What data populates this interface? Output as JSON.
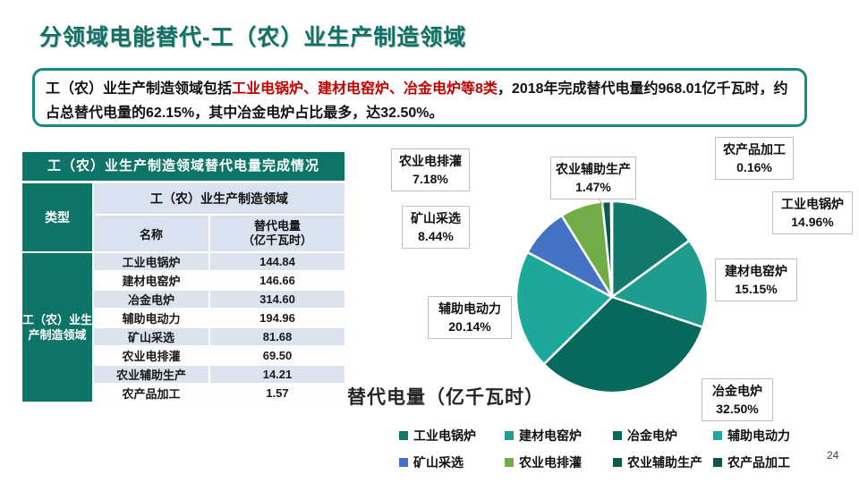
{
  "page": {
    "title": "分领域电能替代-工（农）业生产制造领域",
    "page_number": "24"
  },
  "summary": {
    "prefix": "工（农）业生产制造领域包括",
    "highlight": "工业电锅炉、建材电窑炉、冶金电炉等8类",
    "suffix": "，2018年完成替代电量约968.01亿千瓦时，约占总替代电量的62.15%，其中冶金电炉占比最多，达32.50%。",
    "highlight_color": "#C00000",
    "border_color": "#1B8A7D"
  },
  "table": {
    "title": "工（农）业生产制造领域替代电量完成情况",
    "type_header": "类型",
    "group_header": "工（农）业生产制造领域",
    "col_name": "名称",
    "col_value_line1": "替代电量",
    "col_value_line2": "（亿千瓦时）",
    "group_label_line1": "工（农）业生",
    "group_label_line2": "产制造领域",
    "rows": [
      {
        "name": "工业电锅炉",
        "value": "144.84"
      },
      {
        "name": "建材电窑炉",
        "value": "146.66"
      },
      {
        "name": "冶金电炉",
        "value": "314.60"
      },
      {
        "name": "辅助电动力",
        "value": "194.96"
      },
      {
        "name": "矿山采选",
        "value": "81.68"
      },
      {
        "name": "农业电排灌",
        "value": "69.50"
      },
      {
        "name": "农业辅助生产",
        "value": "14.21"
      },
      {
        "name": "农产品加工",
        "value": "1.57"
      }
    ]
  },
  "chart_data": {
    "type": "pie",
    "title": "替代电量（亿千瓦时）",
    "start_angle_deg": 0,
    "direction": "clockwise-from-12-oclock",
    "legend_position": "bottom",
    "slices": [
      {
        "name": "工业电锅炉",
        "value": 14.96,
        "pct_label": "14.96%",
        "color": "#12796C"
      },
      {
        "name": "建材电窑炉",
        "value": 15.15,
        "pct_label": "15.15%",
        "color": "#1F9C8E"
      },
      {
        "name": "冶金电炉",
        "value": 32.5,
        "pct_label": "32.50%",
        "color": "#07695C"
      },
      {
        "name": "辅助电动力",
        "value": 20.14,
        "pct_label": "20.14%",
        "color": "#1CA99C"
      },
      {
        "name": "矿山采选",
        "value": 8.44,
        "pct_label": "8.44%",
        "color": "#4472C4"
      },
      {
        "name": "农业电排灌",
        "value": 7.18,
        "pct_label": "7.18%",
        "color": "#70AD47"
      },
      {
        "name": "农业辅助生产",
        "value": 1.47,
        "pct_label": "1.47%",
        "color": "#0A5A50"
      },
      {
        "name": "农产品加工",
        "value": 0.16,
        "pct_label": "0.16%",
        "color": "#0C564D"
      }
    ]
  }
}
